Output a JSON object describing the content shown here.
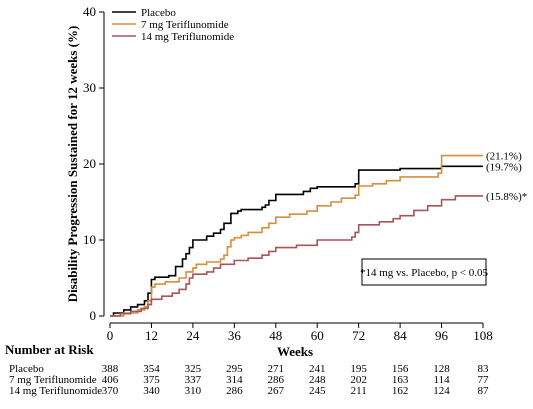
{
  "chart_data": {
    "type": "line",
    "step": true,
    "xlabel": "Weeks",
    "ylabel": "Disability Progression Sustained for 12 weeks (%)",
    "xlim": [
      0,
      108
    ],
    "ylim": [
      0,
      40
    ],
    "xticks": [
      0,
      12,
      24,
      36,
      48,
      60,
      72,
      84,
      96,
      108
    ],
    "yticks": [
      0,
      10,
      20,
      30,
      40
    ],
    "grid": false,
    "legend": "top-left",
    "series": [
      {
        "name": "Placebo",
        "color": "#000000",
        "end_label": "(19.7%)",
        "points": [
          [
            0,
            0
          ],
          [
            1,
            0.4
          ],
          [
            4,
            0.8
          ],
          [
            6,
            1.2
          ],
          [
            8,
            1.5
          ],
          [
            10,
            2.0
          ],
          [
            11,
            3.0
          ],
          [
            12,
            4.8
          ],
          [
            13,
            5.1
          ],
          [
            17,
            5.3
          ],
          [
            19,
            6.5
          ],
          [
            21,
            7.5
          ],
          [
            22,
            8.2
          ],
          [
            23,
            9.0
          ],
          [
            24,
            10.0
          ],
          [
            28,
            10.5
          ],
          [
            30,
            10.9
          ],
          [
            32,
            11.4
          ],
          [
            33,
            12.2
          ],
          [
            35,
            13.5
          ],
          [
            37,
            13.8
          ],
          [
            38,
            14.0
          ],
          [
            44,
            14.3
          ],
          [
            45,
            14.6
          ],
          [
            46,
            15.2
          ],
          [
            48,
            16.0
          ],
          [
            56,
            16.4
          ],
          [
            58,
            16.8
          ],
          [
            60,
            17.0
          ],
          [
            71,
            17.4
          ],
          [
            72,
            19.2
          ],
          [
            84,
            19.4
          ],
          [
            96,
            19.7
          ],
          [
            108,
            19.7
          ]
        ]
      },
      {
        "name": "7 mg Teriflunomide",
        "color": "#d98e3a",
        "end_label": "(21.1%)",
        "points": [
          [
            0,
            0
          ],
          [
            4,
            0.4
          ],
          [
            8,
            0.8
          ],
          [
            10,
            1.2
          ],
          [
            11,
            2.0
          ],
          [
            12,
            3.8
          ],
          [
            13,
            4.2
          ],
          [
            16,
            4.5
          ],
          [
            20,
            5.0
          ],
          [
            22,
            5.8
          ],
          [
            24,
            6.3
          ],
          [
            25,
            6.8
          ],
          [
            28,
            7.1
          ],
          [
            32,
            7.5
          ],
          [
            33,
            8.0
          ],
          [
            34,
            9.1
          ],
          [
            35,
            10.0
          ],
          [
            36,
            10.3
          ],
          [
            38,
            10.6
          ],
          [
            40,
            11.0
          ],
          [
            44,
            11.6
          ],
          [
            46,
            12.2
          ],
          [
            48,
            13.0
          ],
          [
            52,
            13.4
          ],
          [
            57,
            13.8
          ],
          [
            60,
            14.5
          ],
          [
            64,
            15.0
          ],
          [
            67,
            15.5
          ],
          [
            71,
            15.9
          ],
          [
            72,
            17.1
          ],
          [
            76,
            17.4
          ],
          [
            80,
            17.8
          ],
          [
            84,
            18.3
          ],
          [
            95,
            18.8
          ],
          [
            96,
            21.1
          ],
          [
            108,
            21.1
          ]
        ]
      },
      {
        "name": "14 mg Teriflunomide",
        "color": "#a8545a",
        "end_label": "(15.8%)*",
        "points": [
          [
            0,
            0
          ],
          [
            3,
            0.3
          ],
          [
            6,
            0.6
          ],
          [
            9,
            1.0
          ],
          [
            11,
            1.5
          ],
          [
            12,
            2.2
          ],
          [
            15,
            2.6
          ],
          [
            18,
            3.0
          ],
          [
            20,
            3.5
          ],
          [
            22,
            4.2
          ],
          [
            23,
            5.0
          ],
          [
            24,
            5.5
          ],
          [
            28,
            5.8
          ],
          [
            30,
            6.3
          ],
          [
            32,
            6.8
          ],
          [
            36,
            7.3
          ],
          [
            40,
            7.6
          ],
          [
            44,
            8.0
          ],
          [
            46,
            8.5
          ],
          [
            48,
            9.0
          ],
          [
            54,
            9.3
          ],
          [
            60,
            10.0
          ],
          [
            70,
            10.4
          ],
          [
            71,
            11.0
          ],
          [
            72,
            12.0
          ],
          [
            78,
            12.4
          ],
          [
            82,
            12.8
          ],
          [
            84,
            13.2
          ],
          [
            88,
            13.9
          ],
          [
            92,
            14.5
          ],
          [
            96,
            15.3
          ],
          [
            100,
            15.8
          ],
          [
            108,
            15.8
          ]
        ]
      }
    ],
    "annotation": "*14 mg vs. Placebo, p < 0.05"
  },
  "risk_table": {
    "title": "Number at Risk",
    "weeks": [
      0,
      12,
      24,
      36,
      48,
      60,
      72,
      84,
      96,
      108
    ],
    "rows": [
      {
        "name": "Placebo",
        "values": [
          "388",
          "354",
          "325",
          "295",
          "271",
          "241",
          "195",
          "156",
          "128",
          "83"
        ]
      },
      {
        "name": "7 mg Teriflunomide",
        "values": [
          "406",
          "375",
          "337",
          "314",
          "286",
          "248",
          "202",
          "163",
          "114",
          "77"
        ]
      },
      {
        "name": "14 mg Teriflunomide",
        "values": [
          "370",
          "340",
          "310",
          "286",
          "267",
          "245",
          "211",
          "162",
          "124",
          "87"
        ]
      }
    ]
  }
}
